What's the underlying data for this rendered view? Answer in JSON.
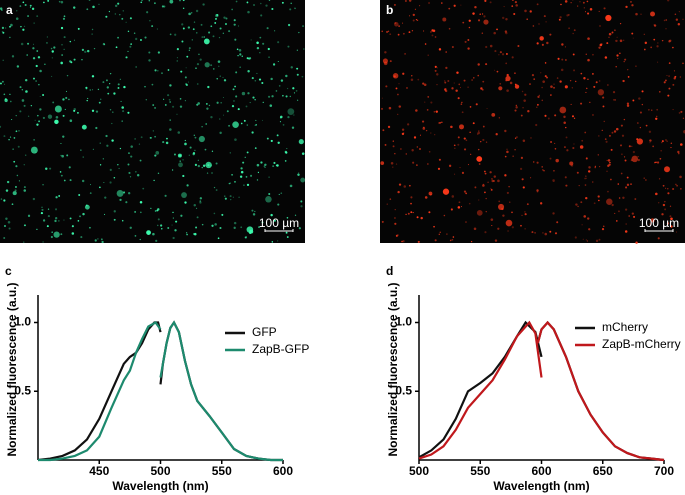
{
  "images": [
    {
      "label": "a",
      "scale_bar": "100 µm",
      "dot_color": "#3dffb0"
    },
    {
      "label": "b",
      "scale_bar": "100 µm",
      "dot_color": "#ff3a1a"
    }
  ],
  "chart_data": [
    {
      "type": "line",
      "label": "c",
      "x_label": "Wavelength (nm)",
      "y_label": "Normalized fluorescence (a.u.)",
      "xlim": [
        400,
        600
      ],
      "xticks": [
        450,
        500,
        550,
        600
      ],
      "ylim": [
        0,
        1.2
      ],
      "yticks": [
        0.5,
        {
          "value": 1,
          "label": "1.0"
        }
      ],
      "legend": "right",
      "series": [
        {
          "name": "GFP",
          "color": "#111111",
          "x": [
            400,
            410,
            420,
            430,
            440,
            450,
            460,
            470,
            475,
            480,
            485,
            490,
            495,
            498,
            500,
            null,
            500,
            502,
            505,
            508,
            511,
            515,
            520,
            525,
            530,
            540,
            550,
            560,
            570,
            580,
            590,
            600
          ],
          "values": [
            0,
            0.01,
            0.03,
            0.07,
            0.15,
            0.3,
            0.5,
            0.7,
            0.75,
            0.78,
            0.85,
            0.95,
            1.0,
            1.0,
            0.93,
            null,
            0.55,
            0.7,
            0.85,
            0.96,
            1.0,
            0.93,
            0.72,
            0.55,
            0.43,
            0.32,
            0.2,
            0.08,
            0.03,
            0.01,
            0,
            0
          ]
        },
        {
          "name": "ZapB-GFP",
          "color": "#1d8a6e",
          "x": [
            400,
            410,
            420,
            430,
            440,
            450,
            460,
            470,
            475,
            480,
            485,
            490,
            496,
            500,
            null,
            500,
            502,
            505,
            508,
            511,
            515,
            520,
            525,
            530,
            540,
            550,
            560,
            570,
            580,
            590,
            600
          ],
          "values": [
            0,
            0,
            0.01,
            0.03,
            0.07,
            0.17,
            0.38,
            0.58,
            0.65,
            0.78,
            0.88,
            0.97,
            1.0,
            0.95,
            null,
            0.6,
            0.7,
            0.85,
            0.96,
            1.0,
            0.93,
            0.72,
            0.55,
            0.43,
            0.32,
            0.2,
            0.08,
            0.03,
            0.01,
            0,
            0
          ]
        }
      ]
    },
    {
      "type": "line",
      "label": "d",
      "x_label": "Wavelength (nm)",
      "y_label": "Normalized fluorescence (a.u.)",
      "xlim": [
        500,
        700
      ],
      "xticks": [
        500,
        550,
        600,
        650,
        700
      ],
      "ylim": [
        0,
        1.2
      ],
      "yticks": [
        0.5,
        {
          "value": 1,
          "label": "1.0"
        }
      ],
      "legend": "right",
      "series": [
        {
          "name": "mCherry",
          "color": "#111111",
          "x": [
            500,
            510,
            520,
            530,
            540,
            550,
            560,
            570,
            580,
            587,
            595,
            600,
            null,
            597,
            600,
            605,
            610,
            620,
            630,
            640,
            650,
            660,
            670,
            680,
            690,
            700
          ],
          "values": [
            0.02,
            0.07,
            0.15,
            0.3,
            0.5,
            0.56,
            0.63,
            0.75,
            0.9,
            1.0,
            0.93,
            0.75,
            null,
            0.85,
            0.95,
            1.0,
            0.95,
            0.75,
            0.5,
            0.33,
            0.2,
            0.1,
            0.05,
            0.02,
            0.01,
            0
          ]
        },
        {
          "name": "ZapB-mCherry",
          "color": "#c0181c",
          "x": [
            500,
            510,
            520,
            530,
            540,
            550,
            560,
            570,
            580,
            590,
            595,
            600,
            null,
            597,
            600,
            605,
            610,
            620,
            630,
            640,
            650,
            660,
            670,
            680,
            690,
            700
          ],
          "values": [
            0.01,
            0.04,
            0.1,
            0.22,
            0.38,
            0.48,
            0.58,
            0.73,
            0.9,
            1.0,
            0.92,
            0.6,
            null,
            0.85,
            0.95,
            1.0,
            0.95,
            0.75,
            0.5,
            0.33,
            0.2,
            0.1,
            0.05,
            0.02,
            0.01,
            0
          ]
        }
      ]
    }
  ]
}
